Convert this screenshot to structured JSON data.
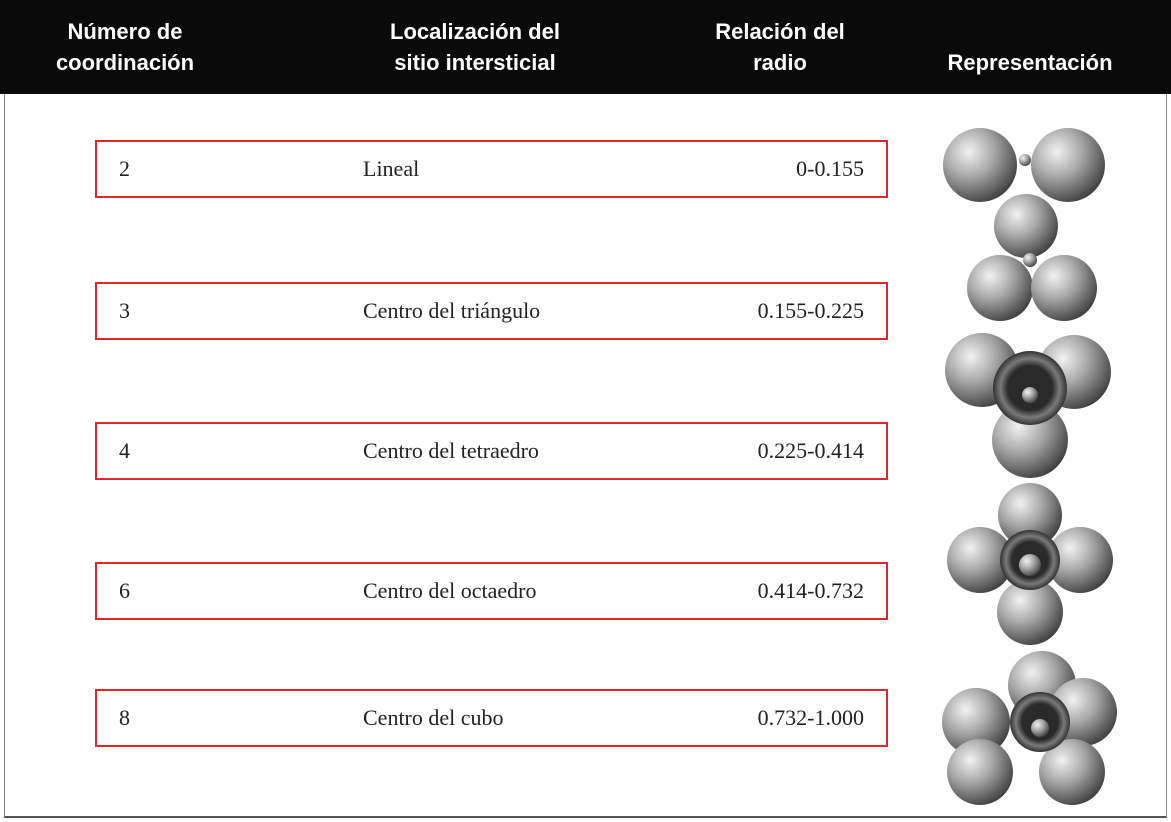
{
  "header": {
    "columns": [
      [
        "Número de",
        "coordinación"
      ],
      [
        "Localización del",
        "sitio intersticial"
      ],
      [
        "Relación del",
        "radio"
      ],
      [
        "Representación"
      ]
    ]
  },
  "table": {
    "rows": [
      [
        "2",
        "Lineal",
        "0-0.155"
      ],
      [
        "3",
        "Centro del triángulo",
        "0.155-0.225"
      ],
      [
        "4",
        "Centro del tetraedro",
        "0.225-0.414"
      ],
      [
        "6",
        "Centro del octaedro",
        "0.414-0.732"
      ],
      [
        "8",
        "Centro del cubo",
        "0.732-1.000"
      ]
    ]
  }
}
